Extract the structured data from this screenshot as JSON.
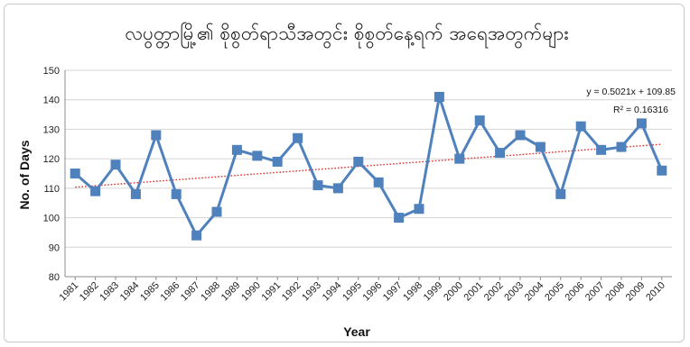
{
  "chart_data": {
    "type": "line",
    "title": "လပွတ္တာမြို့၏ စိုစွတ်ရာသီအတွင်း စိုစွတ်နေ့ရက် အရေအတွက်များ",
    "xlabel": "Year",
    "ylabel": "No. of Days",
    "ylim": [
      80,
      150
    ],
    "yticks": [
      80,
      90,
      100,
      110,
      120,
      130,
      140,
      150
    ],
    "grid": true,
    "categories": [
      "1981",
      "1982",
      "1983",
      "1984",
      "1985",
      "1986",
      "1987",
      "1988",
      "1989",
      "1990",
      "1991",
      "1992",
      "1993",
      "1994",
      "1995",
      "1996",
      "1997",
      "1998",
      "1999",
      "2000",
      "2001",
      "2002",
      "2003",
      "2004",
      "2005",
      "2006",
      "2007",
      "2008",
      "2009",
      "2010"
    ],
    "series": [
      {
        "values": [
          115,
          109,
          118,
          108,
          128,
          108,
          94,
          102,
          123,
          121,
          119,
          127,
          111,
          110,
          119,
          112,
          100,
          103,
          141,
          120,
          133,
          122,
          128,
          124,
          108,
          131,
          123,
          124,
          132,
          116
        ],
        "color": "#4f81bd",
        "marker": "square"
      }
    ],
    "trendline": {
      "equation": "y = 0.5021x + 109.85",
      "r_squared": "R² = 0.16316",
      "slope": 0.5021,
      "intercept": 109.85,
      "color": "#e0302a",
      "style": "dotted"
    }
  }
}
